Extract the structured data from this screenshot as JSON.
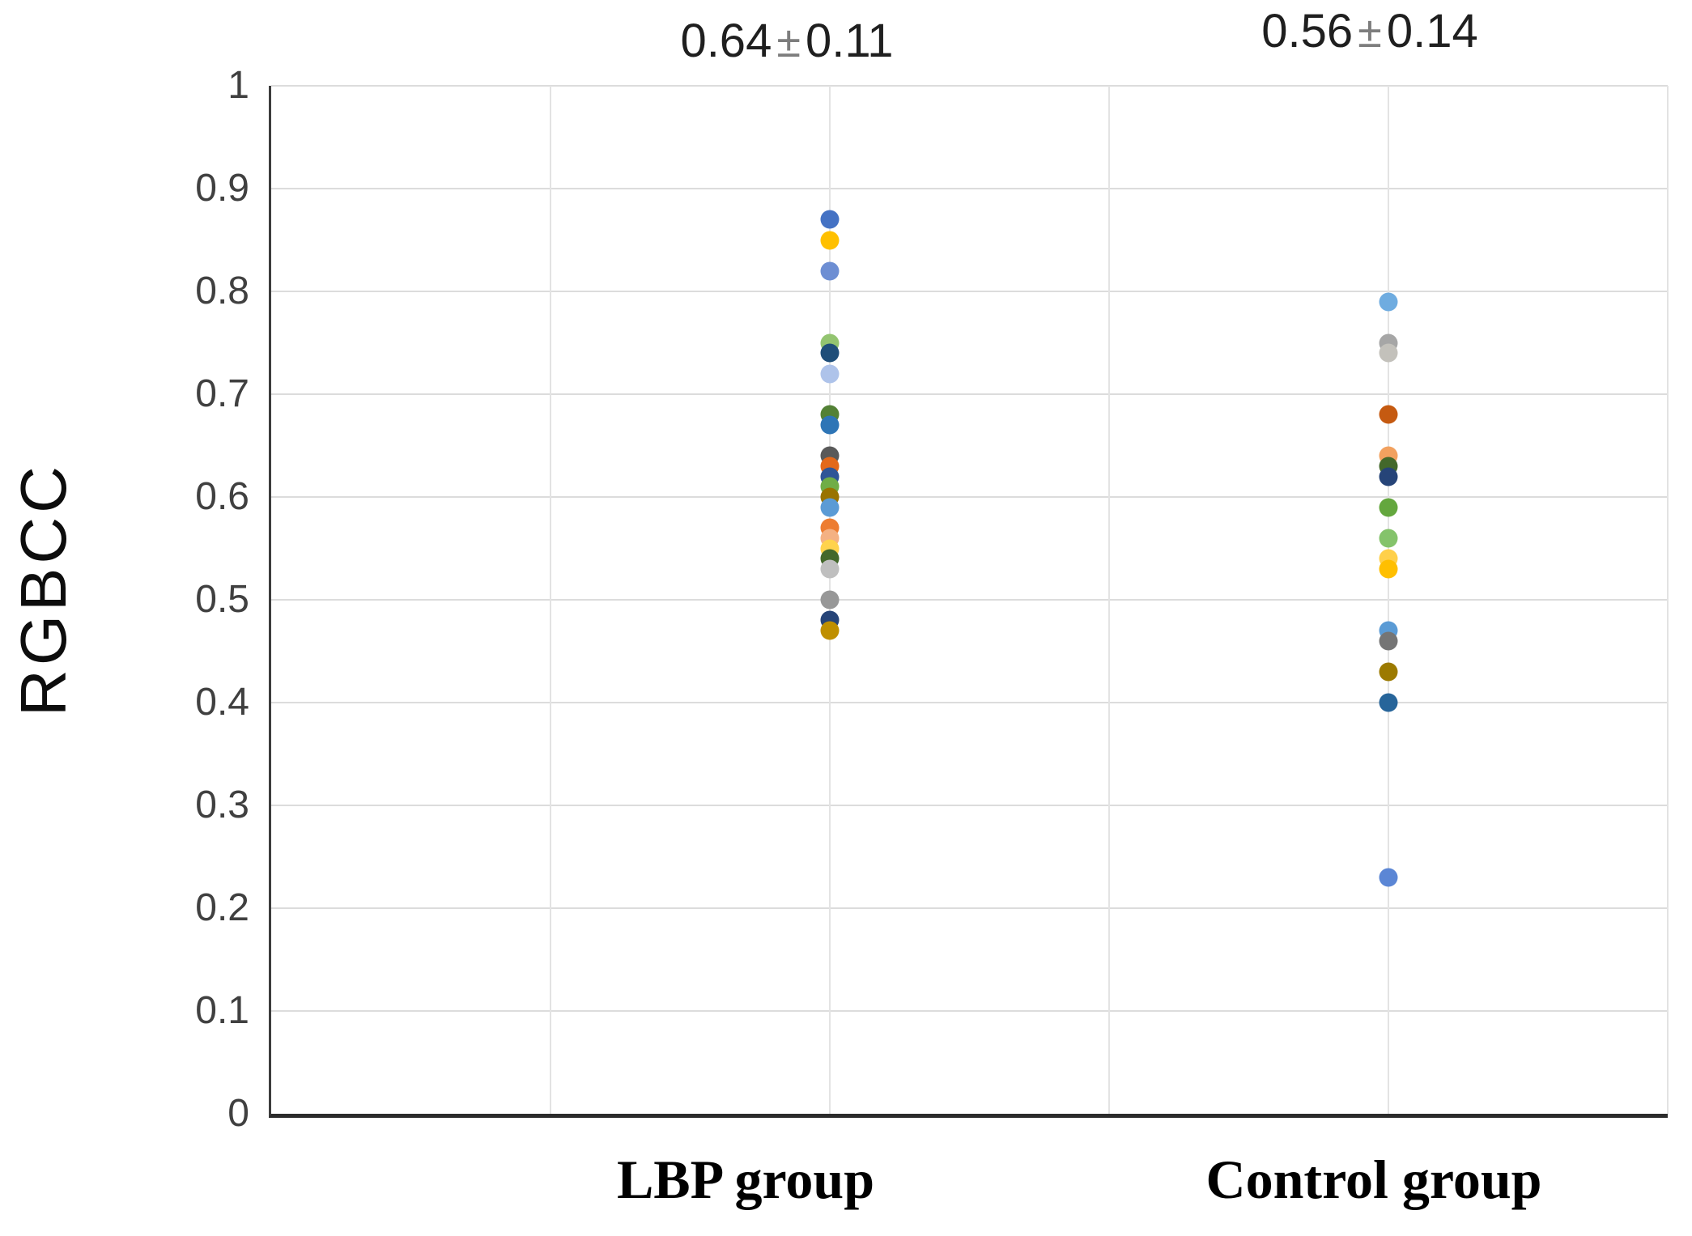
{
  "figure": {
    "background_color": "#ffffff",
    "gridline_color": "#dcdcdc",
    "axis_color": "#2b2b2b",
    "tick_label_color": "#404040",
    "annotation_color": "#1f1f1f",
    "plus_minus_color": "#7d7d7d"
  },
  "chart_data": {
    "type": "scatter",
    "title": "",
    "xlabel": "",
    "ylabel": "RGBCC",
    "ylim": [
      0,
      1
    ],
    "grid": true,
    "legend": false,
    "ytick_values": [
      1,
      0.9,
      0.8,
      0.7,
      0.6,
      0.5,
      0.4,
      0.3,
      0.2,
      0.1,
      0
    ],
    "ytick_labels": [
      "1",
      "0.9",
      "0.8",
      "0.7",
      "0.6",
      "0.5",
      "0.4",
      "0.3",
      "0.2",
      "0.1",
      "0"
    ],
    "categories": [
      "LBP group",
      "Control group"
    ],
    "annotations": [
      {
        "mean": "0.64",
        "plus_minus": "±",
        "sd": "0.11"
      },
      {
        "mean": "0.56",
        "plus_minus": "±",
        "sd": "0.14"
      }
    ],
    "series": [
      {
        "name": "LBP group",
        "points": [
          {
            "y": 0.87,
            "color": "#4472C4"
          },
          {
            "y": 0.85,
            "color": "#FFC000"
          },
          {
            "y": 0.82,
            "color": "#6D8ED3"
          },
          {
            "y": 0.75,
            "color": "#93C470"
          },
          {
            "y": 0.74,
            "color": "#1F4E79"
          },
          {
            "y": 0.72,
            "color": "#AEC3EA"
          },
          {
            "y": 0.68,
            "color": "#538135"
          },
          {
            "y": 0.67,
            "color": "#2E75B6"
          },
          {
            "y": 0.64,
            "color": "#595959"
          },
          {
            "y": 0.63,
            "color": "#E3691B"
          },
          {
            "y": 0.62,
            "color": "#2F5597"
          },
          {
            "y": 0.61,
            "color": "#70AD47"
          },
          {
            "y": 0.6,
            "color": "#997300"
          },
          {
            "y": 0.59,
            "color": "#5B9BD5"
          },
          {
            "y": 0.57,
            "color": "#ED7D31"
          },
          {
            "y": 0.56,
            "color": "#F4B183"
          },
          {
            "y": 0.55,
            "color": "#FFD34D"
          },
          {
            "y": 0.54,
            "color": "#43682B"
          },
          {
            "y": 0.53,
            "color": "#BFBFBF"
          },
          {
            "y": 0.5,
            "color": "#979797"
          },
          {
            "y": 0.48,
            "color": "#264478"
          },
          {
            "y": 0.47,
            "color": "#BF8F00"
          }
        ]
      },
      {
        "name": "Control group",
        "points": [
          {
            "y": 0.79,
            "color": "#6FACE0"
          },
          {
            "y": 0.75,
            "color": "#A6A6A6"
          },
          {
            "y": 0.74,
            "color": "#C3C1BB"
          },
          {
            "y": 0.68,
            "color": "#C55A11"
          },
          {
            "y": 0.64,
            "color": "#F2A15F"
          },
          {
            "y": 0.63,
            "color": "#43682B"
          },
          {
            "y": 0.62,
            "color": "#264478"
          },
          {
            "y": 0.59,
            "color": "#64A73E"
          },
          {
            "y": 0.56,
            "color": "#84C36B"
          },
          {
            "y": 0.54,
            "color": "#FFD04A"
          },
          {
            "y": 0.53,
            "color": "#FFBF00"
          },
          {
            "y": 0.47,
            "color": "#5B9BD5"
          },
          {
            "y": 0.46,
            "color": "#757575"
          },
          {
            "y": 0.43,
            "color": "#9C7A00"
          },
          {
            "y": 0.4,
            "color": "#27659A"
          },
          {
            "y": 0.23,
            "color": "#5B86D5"
          }
        ]
      }
    ]
  }
}
